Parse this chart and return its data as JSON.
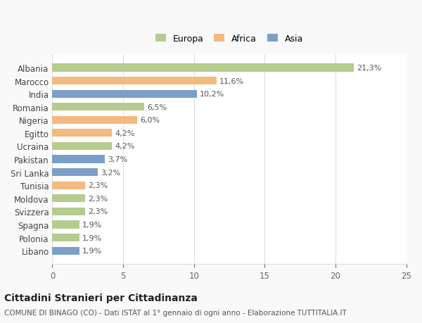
{
  "categories": [
    "Albania",
    "Marocco",
    "India",
    "Romania",
    "Nigeria",
    "Egitto",
    "Ucraina",
    "Pakistan",
    "Sri Lanka",
    "Tunisia",
    "Moldova",
    "Svizzera",
    "Spagna",
    "Polonia",
    "Libano"
  ],
  "values": [
    21.3,
    11.6,
    10.2,
    6.5,
    6.0,
    4.2,
    4.2,
    3.7,
    3.2,
    2.3,
    2.3,
    2.3,
    1.9,
    1.9,
    1.9
  ],
  "labels": [
    "21,3%",
    "11,6%",
    "10,2%",
    "6,5%",
    "6,0%",
    "4,2%",
    "4,2%",
    "3,7%",
    "3,2%",
    "2,3%",
    "2,3%",
    "2,3%",
    "1,9%",
    "1,9%",
    "1,9%"
  ],
  "continents": [
    "Europa",
    "Africa",
    "Asia",
    "Europa",
    "Africa",
    "Africa",
    "Europa",
    "Asia",
    "Asia",
    "Africa",
    "Europa",
    "Europa",
    "Europa",
    "Europa",
    "Asia"
  ],
  "colors": {
    "Europa": "#b5cc8e",
    "Africa": "#f4b97e",
    "Asia": "#7b9fc7"
  },
  "legend": [
    "Europa",
    "Africa",
    "Asia"
  ],
  "legend_colors": [
    "#b5cc8e",
    "#f4b97e",
    "#7b9fc7"
  ],
  "xlim": [
    0,
    25
  ],
  "xticks": [
    0,
    5,
    10,
    15,
    20,
    25
  ],
  "title": "Cittadini Stranieri per Cittadinanza",
  "subtitle": "COMUNE DI BINAGO (CO) - Dati ISTAT al 1° gennaio di ogni anno - Elaborazione TUTTITALIA.IT",
  "bg_color": "#f9f9f9",
  "plot_bg_color": "#ffffff",
  "grid_color": "#dddddd"
}
